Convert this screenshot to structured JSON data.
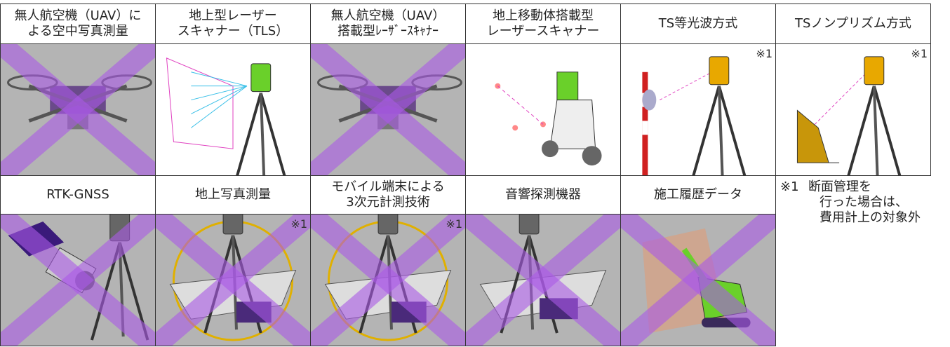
{
  "table": {
    "rows": [
      [
        {
          "lines": [
            "無人航空機（UAV）に",
            "よる空中写真測量"
          ],
          "crossed": true
        },
        {
          "lines": [
            "地上型レーザー",
            "スキャナー（TLS）"
          ],
          "crossed": false
        },
        {
          "lines": [
            "無人航空機（UAV）",
            "搭載型ﾚｰｻﾞｰｽｷｬﾅｰ"
          ],
          "crossed": true
        },
        {
          "lines": [
            "地上移動体搭載型",
            "レーザースキャナー"
          ],
          "crossed": false
        },
        {
          "lines": [
            "TS等光波方式"
          ],
          "note_mark": "※1",
          "crossed": false
        },
        {
          "lines": [
            "TSノンプリズム方式"
          ],
          "note_mark": "※1",
          "crossed": false
        }
      ],
      [
        {
          "lines": [
            "RTK-GNSS"
          ],
          "crossed": true
        },
        {
          "lines": [
            "地上写真測量"
          ],
          "note_mark": "※1",
          "crossed": true
        },
        {
          "lines": [
            "モバイル端末による",
            "3次元計測技術"
          ],
          "note_mark": "※1",
          "crossed": true
        },
        {
          "lines": [
            "音響探測機器"
          ],
          "crossed": true
        },
        {
          "lines": [
            "施工履歴データ"
          ],
          "crossed": true
        }
      ]
    ]
  },
  "footnote": {
    "mark": "※1",
    "lines": [
      "断面管理を",
      "行った場合は、",
      "費用計上の対象外"
    ]
  }
}
